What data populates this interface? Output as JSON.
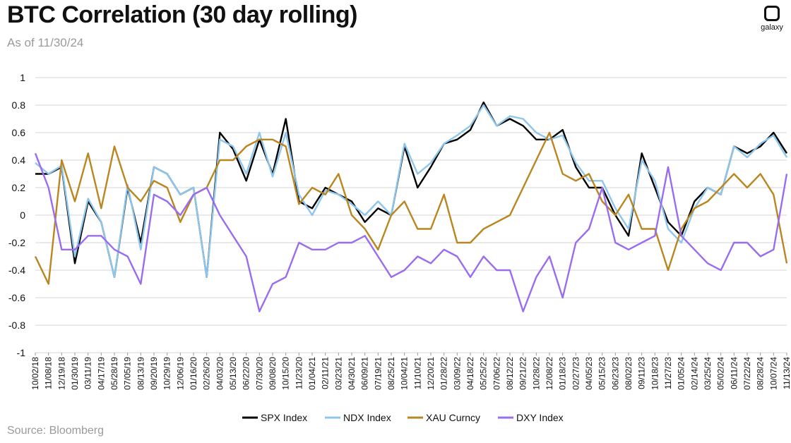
{
  "header": {
    "title": "BTC Correlation (30 day rolling)",
    "subtitle": "As of 11/30/24"
  },
  "brand": {
    "logo_text": "galaxy"
  },
  "footer": {
    "source": "Source: Bloomberg"
  },
  "chart_data": {
    "type": "line",
    "title": "BTC Correlation (30 day rolling)",
    "subtitle": "As of 11/30/24",
    "xlabel": "",
    "ylabel": "",
    "ylim": [
      -1,
      1
    ],
    "yticks": [
      1,
      0.8,
      0.6,
      0.4,
      0.2,
      0,
      -0.2,
      -0.4,
      -0.6,
      -0.8,
      -1
    ],
    "ytick_labels": [
      "1",
      "0.8",
      "0.6",
      "0.4",
      "0.2",
      "0",
      "-0.2",
      "-0.4",
      "-0.6",
      "-0.8",
      "-1"
    ],
    "grid": "horizontal",
    "legend_position": "bottom",
    "x": [
      "10/02/18",
      "11/08/18",
      "12/19/18",
      "01/30/19",
      "03/11/19",
      "04/17/19",
      "05/28/19",
      "07/05/19",
      "08/13/19",
      "09/20/19",
      "10/29/19",
      "12/06/19",
      "01/16/20",
      "02/26/20",
      "04/03/20",
      "05/13/20",
      "06/22/20",
      "07/30/20",
      "09/08/20",
      "10/15/20",
      "11/23/20",
      "01/04/21",
      "02/11/21",
      "03/23/21",
      "04/30/21",
      "06/09/21",
      "07/19/21",
      "08/25/21",
      "10/04/21",
      "11/10/21",
      "12/20/21",
      "01/28/22",
      "03/09/22",
      "04/18/22",
      "05/25/22",
      "07/06/22",
      "08/12/22",
      "09/21/22",
      "10/28/22",
      "12/08/22",
      "01/18/23",
      "02/27/23",
      "04/05/23",
      "05/15/23",
      "06/23/23",
      "08/02/23",
      "09/11/23",
      "10/18/23",
      "11/27/23",
      "01/05/24",
      "02/14/24",
      "03/25/24",
      "05/02/24",
      "06/11/24",
      "07/22/24",
      "08/28/24",
      "10/07/24",
      "11/13/24"
    ],
    "series": [
      {
        "name": "SPX Index",
        "color": "#000000",
        "values": [
          0.3,
          0.3,
          0.35,
          -0.35,
          0.1,
          -0.05,
          -0.45,
          0.2,
          -0.2,
          0.35,
          0.3,
          0.15,
          0.2,
          -0.45,
          0.6,
          0.48,
          0.25,
          0.55,
          0.3,
          0.7,
          0.1,
          0.05,
          0.2,
          0.15,
          0.1,
          -0.05,
          0.05,
          0.0,
          0.5,
          0.2,
          0.35,
          0.52,
          0.55,
          0.62,
          0.82,
          0.65,
          0.7,
          0.65,
          0.55,
          0.55,
          0.62,
          0.35,
          0.2,
          0.2,
          0.0,
          -0.15,
          0.45,
          0.2,
          -0.05,
          -0.15,
          0.1,
          0.2,
          0.15,
          0.5,
          0.45,
          0.5,
          0.6,
          0.45
        ]
      },
      {
        "name": "NDX Index",
        "color": "#8fc6ec",
        "values": [
          0.38,
          0.3,
          0.36,
          -0.3,
          0.12,
          -0.05,
          -0.45,
          0.22,
          -0.25,
          0.35,
          0.3,
          0.15,
          0.2,
          -0.45,
          0.55,
          0.5,
          0.3,
          0.6,
          0.28,
          0.6,
          0.15,
          0.0,
          0.18,
          0.15,
          0.08,
          0.0,
          0.1,
          0.0,
          0.52,
          0.3,
          0.38,
          0.52,
          0.58,
          0.65,
          0.8,
          0.65,
          0.72,
          0.7,
          0.6,
          0.55,
          0.58,
          0.38,
          0.25,
          0.25,
          0.05,
          -0.1,
          0.4,
          0.25,
          -0.1,
          -0.2,
          0.05,
          0.2,
          0.15,
          0.5,
          0.42,
          0.52,
          0.58,
          0.42
        ]
      },
      {
        "name": "XAU Curncy",
        "color": "#b98620",
        "values": [
          -0.3,
          -0.5,
          0.4,
          0.1,
          0.45,
          0.05,
          0.5,
          0.2,
          0.1,
          0.25,
          0.2,
          -0.05,
          0.15,
          0.2,
          0.4,
          0.4,
          0.5,
          0.55,
          0.55,
          0.5,
          0.08,
          0.2,
          0.15,
          0.3,
          0.0,
          -0.1,
          -0.25,
          0.0,
          0.1,
          -0.1,
          -0.1,
          0.15,
          -0.2,
          -0.2,
          -0.1,
          -0.05,
          0.0,
          0.2,
          0.4,
          0.6,
          0.3,
          0.25,
          0.3,
          0.1,
          0.0,
          0.15,
          -0.1,
          -0.1,
          -0.4,
          -0.1,
          0.05,
          0.1,
          0.2,
          0.3,
          0.2,
          0.3,
          0.15,
          -0.35
        ]
      },
      {
        "name": "DXY Index",
        "color": "#9a6cf0",
        "values": [
          0.45,
          0.2,
          -0.25,
          -0.25,
          -0.15,
          -0.15,
          -0.25,
          -0.3,
          -0.5,
          0.15,
          0.1,
          0.0,
          0.15,
          0.2,
          0.0,
          -0.15,
          -0.3,
          -0.7,
          -0.5,
          -0.45,
          -0.2,
          -0.25,
          -0.25,
          -0.2,
          -0.2,
          -0.15,
          -0.3,
          -0.45,
          -0.4,
          -0.3,
          -0.35,
          -0.25,
          -0.3,
          -0.45,
          -0.3,
          -0.4,
          -0.4,
          -0.7,
          -0.45,
          -0.3,
          -0.6,
          -0.2,
          -0.1,
          0.2,
          -0.2,
          -0.25,
          -0.2,
          -0.15,
          0.35,
          -0.15,
          -0.25,
          -0.35,
          -0.4,
          -0.2,
          -0.2,
          -0.3,
          -0.25,
          0.3
        ]
      }
    ]
  }
}
